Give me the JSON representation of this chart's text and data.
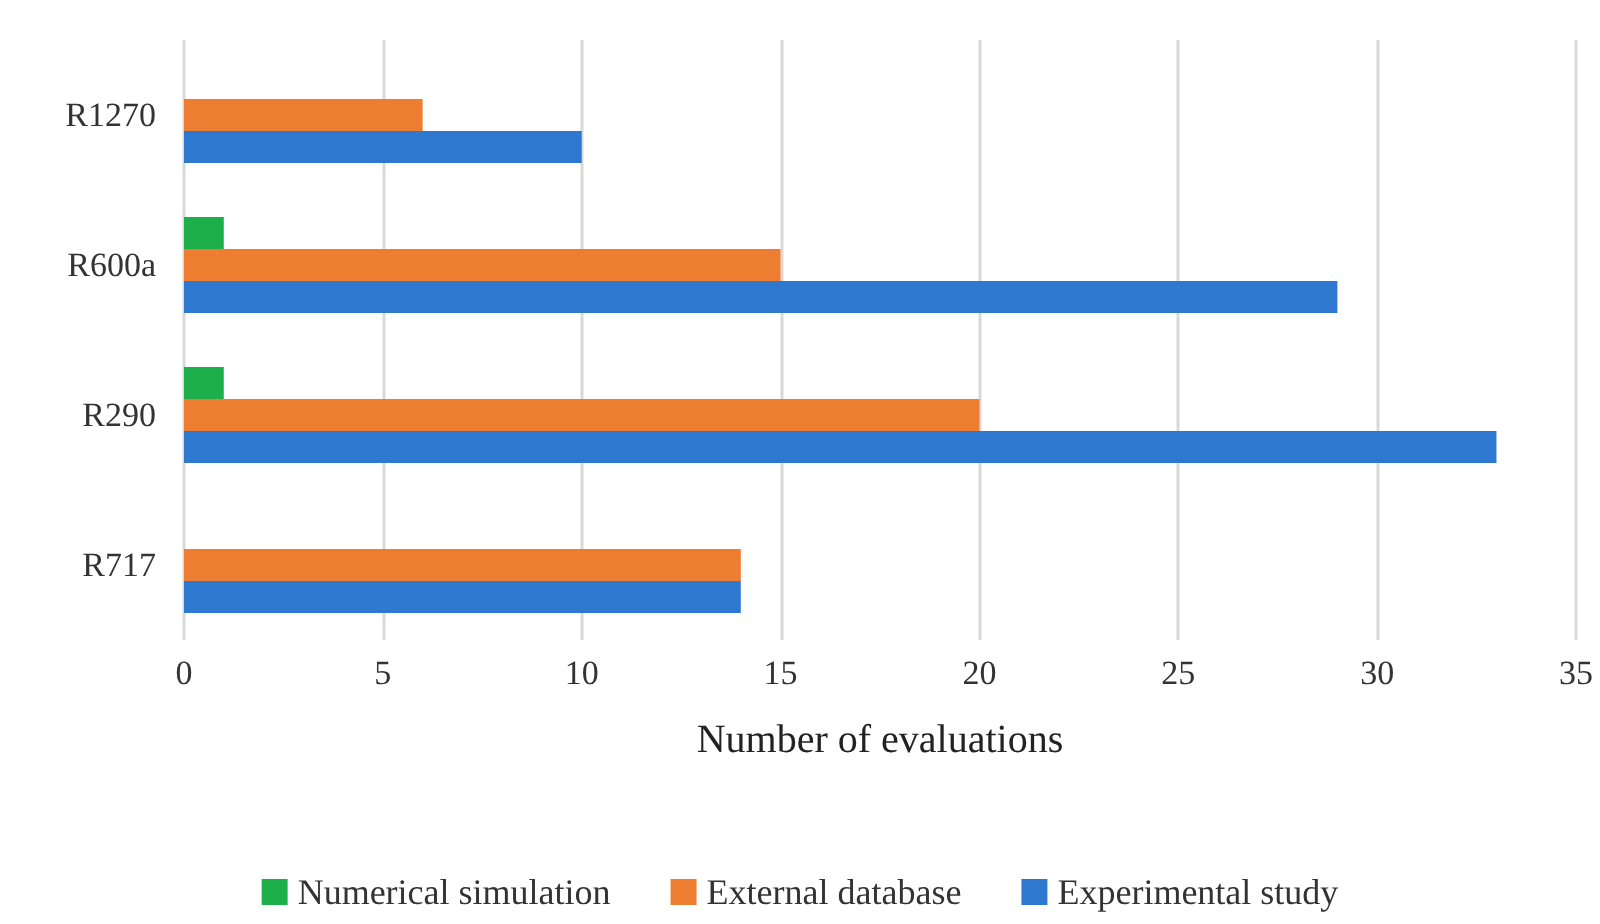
{
  "chart_data": {
    "type": "bar",
    "orientation": "horizontal",
    "xlabel": "Number of evaluations",
    "categories": [
      "R1270",
      "R600a",
      "R290",
      "R717"
    ],
    "series": [
      {
        "name": "Numerical simulation",
        "color": "#1db04a",
        "values": [
          0,
          1,
          1,
          0
        ]
      },
      {
        "name": "External database",
        "color": "#ed7d31",
        "values": [
          6,
          15,
          20,
          14
        ]
      },
      {
        "name": "Experimental study",
        "color": "#2f78d0",
        "values": [
          10,
          29,
          33,
          14
        ]
      }
    ],
    "xlim": [
      0,
      35
    ],
    "xticks": [
      0,
      5,
      10,
      15,
      20,
      25,
      30,
      35
    ],
    "grid": "x",
    "legend": "bottom"
  }
}
